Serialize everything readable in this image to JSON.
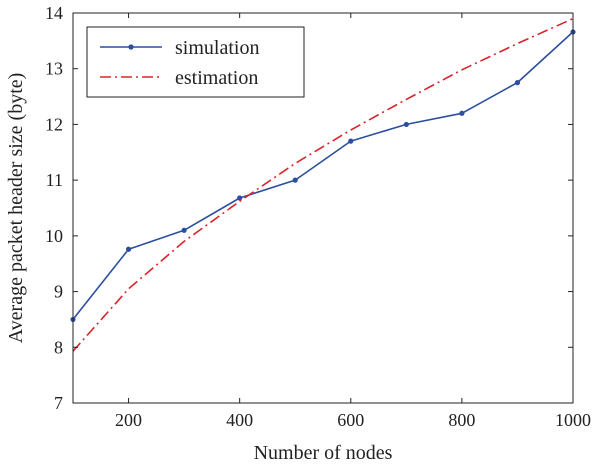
{
  "chart_data": {
    "type": "line",
    "title": "",
    "xlabel": "Number of nodes",
    "ylabel": "Average packet header size (byte)",
    "xlim": [
      100,
      1000
    ],
    "ylim": [
      7,
      14
    ],
    "xticks": [
      200,
      400,
      600,
      800,
      1000
    ],
    "yticks": [
      7,
      8,
      9,
      10,
      11,
      12,
      13,
      14
    ],
    "grid": false,
    "legend_position": "top-left",
    "series": [
      {
        "name": "simulation",
        "style": "solid-line-with-dot-markers",
        "color": "#2b4f9e",
        "x": [
          100,
          200,
          300,
          400,
          500,
          600,
          700,
          800,
          900,
          1000
        ],
        "y": [
          8.5,
          9.76,
          10.1,
          10.68,
          11.0,
          11.7,
          12.0,
          12.2,
          12.75,
          13.66
        ]
      },
      {
        "name": "estimation",
        "style": "dash-dot-line",
        "color": "#d9252a",
        "x": [
          100,
          200,
          300,
          400,
          500,
          600,
          700,
          800,
          900,
          1000
        ],
        "y": [
          7.93,
          9.05,
          9.9,
          10.62,
          11.3,
          11.9,
          12.45,
          12.98,
          13.45,
          13.9
        ]
      }
    ]
  }
}
